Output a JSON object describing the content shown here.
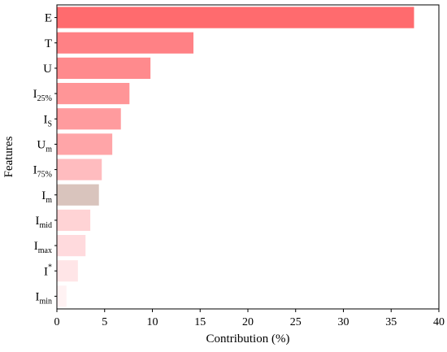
{
  "chart_data": {
    "type": "bar",
    "orientation": "horizontal",
    "categories": [
      {
        "main": "E",
        "sub": "",
        "sup": ""
      },
      {
        "main": "T",
        "sub": "",
        "sup": ""
      },
      {
        "main": "U",
        "sub": "",
        "sup": ""
      },
      {
        "main": "I",
        "sub": "25%",
        "sup": ""
      },
      {
        "main": "I",
        "sub": "S",
        "sup": ""
      },
      {
        "main": "U",
        "sub": "m",
        "sup": ""
      },
      {
        "main": "I",
        "sub": "75%",
        "sup": ""
      },
      {
        "main": "I",
        "sub": "m",
        "sup": ""
      },
      {
        "main": "I",
        "sub": "mid",
        "sup": ""
      },
      {
        "main": "I",
        "sub": "max",
        "sup": ""
      },
      {
        "main": "I",
        "sub": "",
        "sup": "*"
      },
      {
        "main": "I",
        "sub": "min",
        "sup": ""
      }
    ],
    "values": [
      37.4,
      14.3,
      9.8,
      7.6,
      6.7,
      5.8,
      4.7,
      4.4,
      3.5,
      3.0,
      2.2,
      1.0
    ],
    "colors": [
      "#ff6b6e",
      "#ff8185",
      "#ff8a8d",
      "#ff9597",
      "#ff9b9e",
      "#ffa5a8",
      "#ffbcbf",
      "#d9c4bd",
      "#ffd3d5",
      "#ffdadd",
      "#ffe5e7",
      "#fff2f3"
    ],
    "xlabel": "Contribution (%)",
    "ylabel": "Features",
    "xlim": [
      0,
      40
    ],
    "xticks": [
      0,
      5,
      10,
      15,
      20,
      25,
      30,
      35,
      40
    ],
    "grid": false,
    "legend": "none"
  }
}
